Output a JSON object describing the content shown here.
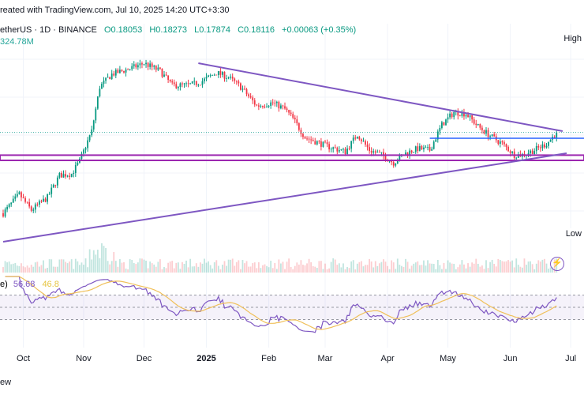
{
  "header": {
    "credit": "reated with TradingView.com, Jul 10, 2025 14:20 UTC+3:30",
    "symbol": "etherUS · 1D · BINANCE",
    "open": "O0.18053",
    "high": "H0.18273",
    "low": "L0.17874",
    "close": "C0.18116",
    "change": "+0.00063 (+0.35%)",
    "volume": "324.78M"
  },
  "edge_labels": {
    "high": "High",
    "low": "Low"
  },
  "rsi_legend": {
    "prefix": "e)",
    "rsi": "56.68",
    "ma": "46.8"
  },
  "footer": "ew",
  "colors": {
    "up": "#089981",
    "down": "#f23645",
    "trend": "#7e57c2",
    "support": "#9c27b0",
    "resistance": "#2962ff",
    "rsi": "#7e57c2",
    "rsi_ma": "#f0c05a"
  },
  "chart_data": {
    "type": "candlestick",
    "title": "etherUS · 1D · BINANCE",
    "xlabel": "",
    "ylabel": "",
    "x_tick_labels": [
      "Oct",
      "Nov",
      "Dec",
      "2025",
      "Feb",
      "Mar",
      "Apr",
      "May",
      "Jun",
      "Jul"
    ],
    "y_domain": [
      0.115,
      0.235
    ],
    "price_path": [
      {
        "day": 0,
        "price": 0.13
      },
      {
        "day": 8,
        "price": 0.142
      },
      {
        "day": 14,
        "price": 0.132
      },
      {
        "day": 22,
        "price": 0.14
      },
      {
        "day": 28,
        "price": 0.154
      },
      {
        "day": 34,
        "price": 0.155
      },
      {
        "day": 38,
        "price": 0.163
      },
      {
        "day": 44,
        "price": 0.182
      },
      {
        "day": 48,
        "price": 0.21
      },
      {
        "day": 54,
        "price": 0.218
      },
      {
        "day": 64,
        "price": 0.222
      },
      {
        "day": 70,
        "price": 0.225
      },
      {
        "day": 78,
        "price": 0.22
      },
      {
        "day": 84,
        "price": 0.211
      },
      {
        "day": 92,
        "price": 0.211
      },
      {
        "day": 98,
        "price": 0.213
      },
      {
        "day": 106,
        "price": 0.219
      },
      {
        "day": 112,
        "price": 0.216
      },
      {
        "day": 118,
        "price": 0.21
      },
      {
        "day": 122,
        "price": 0.204
      },
      {
        "day": 126,
        "price": 0.198
      },
      {
        "day": 134,
        "price": 0.2
      },
      {
        "day": 140,
        "price": 0.196
      },
      {
        "day": 144,
        "price": 0.19
      },
      {
        "day": 150,
        "price": 0.178
      },
      {
        "day": 156,
        "price": 0.175
      },
      {
        "day": 162,
        "price": 0.172
      },
      {
        "day": 170,
        "price": 0.169
      },
      {
        "day": 176,
        "price": 0.18
      },
      {
        "day": 182,
        "price": 0.17
      },
      {
        "day": 188,
        "price": 0.167
      },
      {
        "day": 194,
        "price": 0.162
      },
      {
        "day": 200,
        "price": 0.168
      },
      {
        "day": 206,
        "price": 0.171
      },
      {
        "day": 212,
        "price": 0.17
      },
      {
        "day": 218,
        "price": 0.186
      },
      {
        "day": 224,
        "price": 0.194
      },
      {
        "day": 230,
        "price": 0.193
      },
      {
        "day": 236,
        "price": 0.185
      },
      {
        "day": 242,
        "price": 0.179
      },
      {
        "day": 248,
        "price": 0.174
      },
      {
        "day": 254,
        "price": 0.167
      },
      {
        "day": 258,
        "price": 0.167
      },
      {
        "day": 264,
        "price": 0.17
      },
      {
        "day": 270,
        "price": 0.174
      },
      {
        "day": 275,
        "price": 0.181
      }
    ],
    "last_close": 0.18116,
    "annotations": {
      "descending_trendline": [
        {
          "day": 97,
          "price": 0.225
        },
        {
          "day": 278,
          "price": 0.182
        }
      ],
      "ascending_trendline": [
        {
          "day": 0,
          "price": 0.112
        },
        {
          "day": 280,
          "price": 0.168
        }
      ],
      "support_band": [
        0.1635,
        0.1668
      ],
      "resistance_line": 0.1775
    },
    "rsi": {
      "length": 14,
      "last": 56.68,
      "ma_last": 46.8,
      "levels": [
        70,
        50,
        30
      ]
    }
  }
}
